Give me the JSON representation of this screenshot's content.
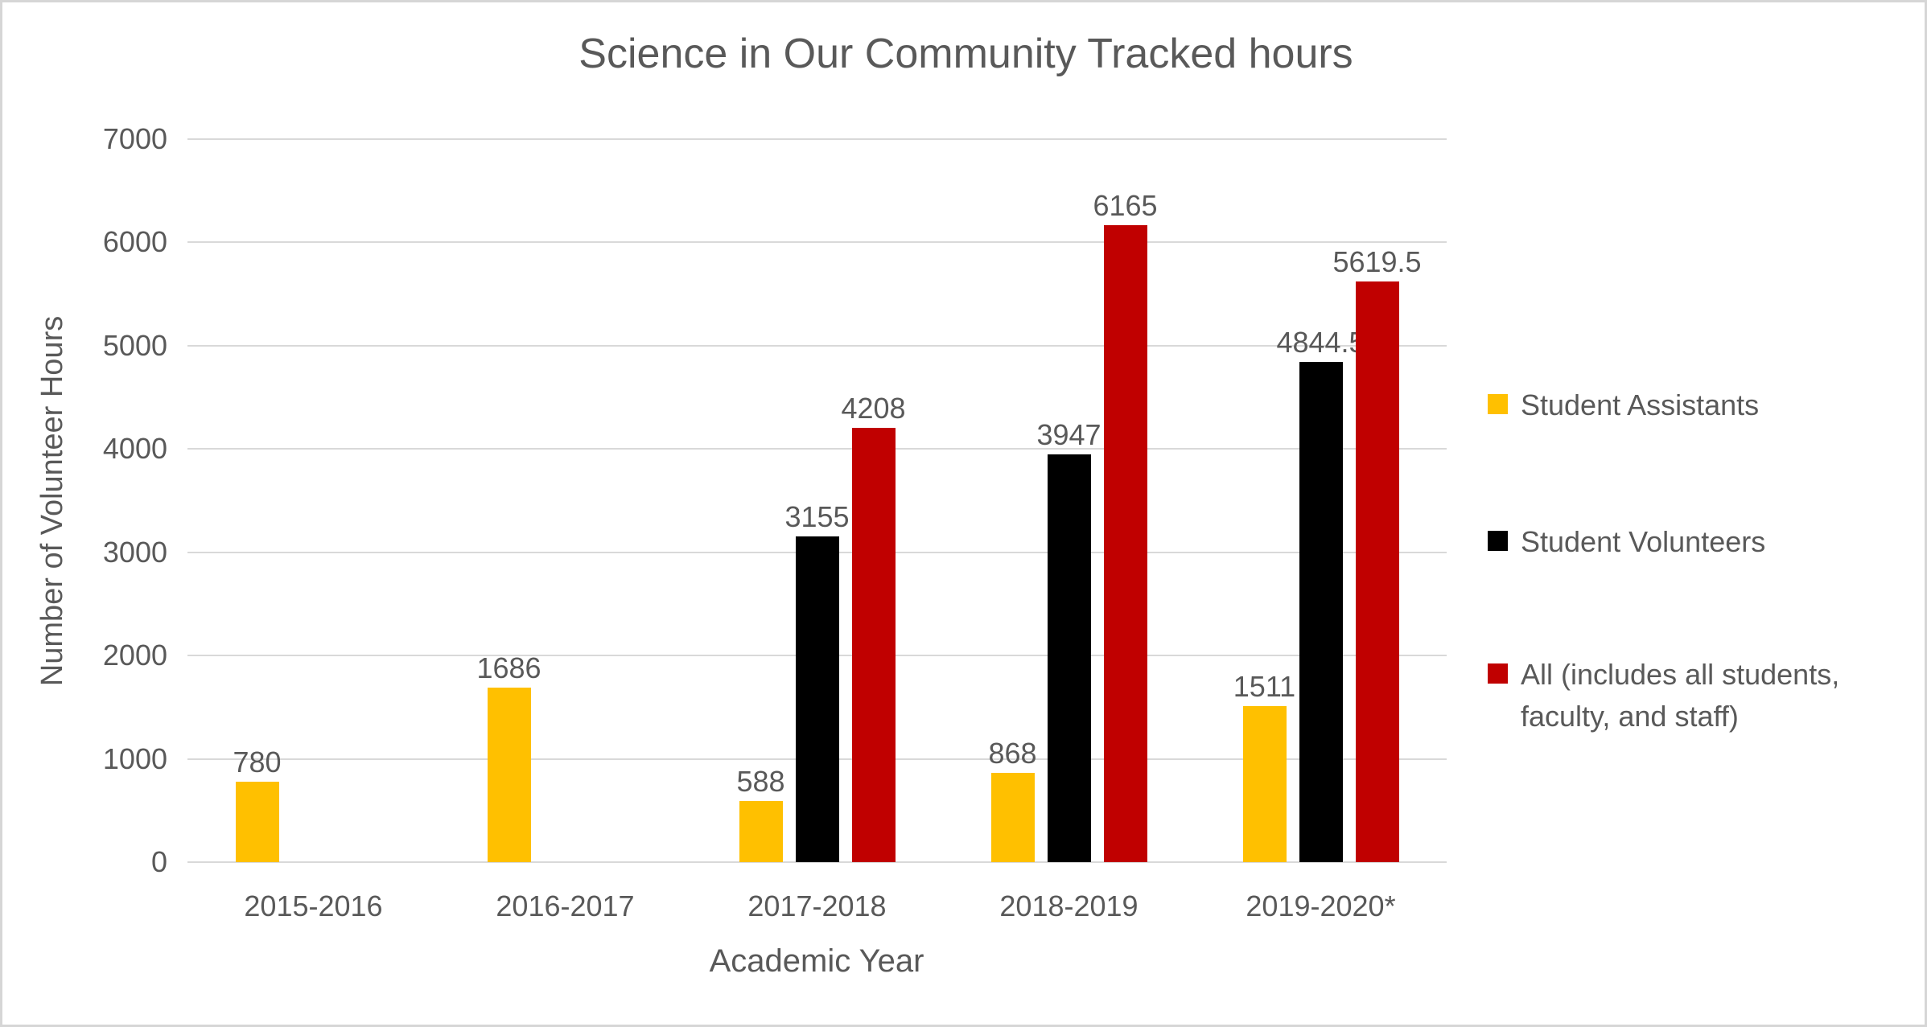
{
  "chart_data": {
    "type": "bar",
    "title": "Science in Our Community Tracked hours",
    "xlabel": "Academic Year",
    "ylabel": "Number of Volunteer Hours",
    "categories": [
      "2015-2016",
      "2016-2017",
      "2017-2018",
      "2018-2019",
      "2019-2020*"
    ],
    "series": [
      {
        "name": "Student Assistants",
        "color": "#FFC000",
        "values": [
          780,
          1686,
          588,
          868,
          1511
        ]
      },
      {
        "name": "Student Volunteers",
        "color": "#000000",
        "values": [
          null,
          null,
          3155,
          3947,
          4844.5
        ]
      },
      {
        "name": "All (includes all students, faculty, and staff)",
        "color": "#C00000",
        "values": [
          null,
          null,
          4208,
          6165,
          5619.5
        ]
      }
    ],
    "yticks": [
      0,
      1000,
      2000,
      3000,
      4000,
      5000,
      6000,
      7000
    ],
    "ylim": [
      0,
      7000
    ],
    "grid": true,
    "data_labels": true,
    "legend_position": "right"
  },
  "colors": {
    "text": "#595959",
    "gridline": "#D9D9D9",
    "background": "#FFFFFF",
    "border": "#D6D6D6",
    "series_gold": "#FFC000",
    "series_black": "#000000",
    "series_red": "#C00000"
  }
}
